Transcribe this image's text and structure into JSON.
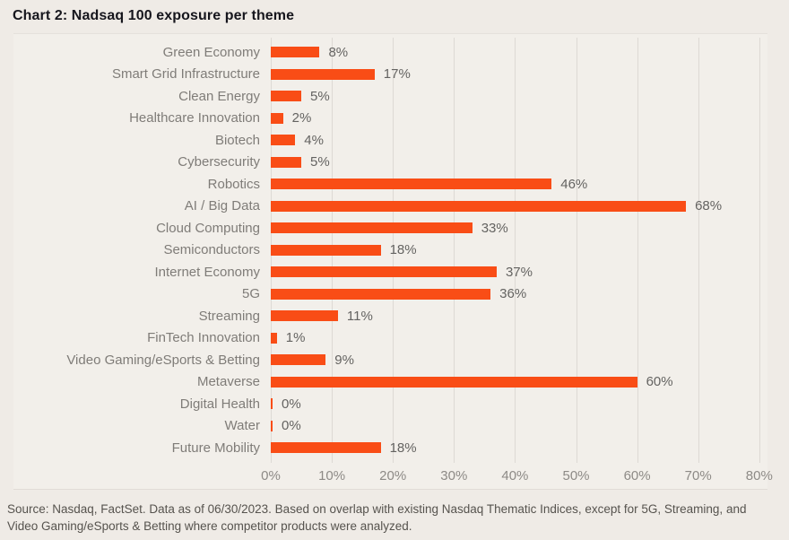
{
  "page": {
    "title": "Chart 2: Nadsaq 100 exposure per theme",
    "footer_lines": [
      "Source: Nasdaq, FactSet. Data as of 06/30/2023. Based on overlap with existing Nasdaq Thematic Indices, except for 5G, Streaming, and",
      "Video Gaming/eSports & Betting where competitor products were analyzed."
    ]
  },
  "chart_data": {
    "type": "bar",
    "orientation": "horizontal",
    "title": "Chart 2: Nadsaq 100 exposure per theme",
    "categories": [
      "Green Economy",
      "Smart Grid Infrastructure",
      "Clean Energy",
      "Healthcare Innovation",
      "Biotech",
      "Cybersecurity",
      "Robotics",
      "AI / Big Data",
      "Cloud Computing",
      "Semiconductors",
      "Internet Economy",
      "5G",
      "Streaming",
      "FinTech Innovation",
      "Video Gaming/eSports & Betting",
      "Metaverse",
      "Digital Health",
      "Water",
      "Future Mobility"
    ],
    "values": [
      8,
      17,
      5,
      2,
      4,
      5,
      46,
      68,
      33,
      18,
      37,
      36,
      11,
      1,
      9,
      60,
      0,
      0,
      18
    ],
    "value_labels": [
      "8%",
      "17%",
      "5%",
      "2%",
      "4%",
      "5%",
      "46%",
      "68%",
      "33%",
      "18%",
      "37%",
      "36%",
      "11%",
      "1%",
      "9%",
      "60%",
      "0%",
      "0%",
      "18%"
    ],
    "xlabel": "",
    "ylabel": "",
    "xlim": [
      0,
      80
    ],
    "x_tick_values": [
      0,
      10,
      20,
      30,
      40,
      50,
      60,
      70,
      80
    ],
    "x_tick_labels": [
      "0%",
      "10%",
      "20%",
      "30%",
      "40%",
      "50%",
      "60%",
      "70%",
      "80%"
    ],
    "grid": "vertical",
    "legend": "none",
    "colors": {
      "bar": "#f94d16",
      "title": "#16161d",
      "category_label": "#7f7c78",
      "value_label": "#646361",
      "axis_label": "#8d8a86",
      "gridline": "#ddd9d4",
      "background": "#efebe6",
      "panel_background": "#f2efea"
    }
  }
}
